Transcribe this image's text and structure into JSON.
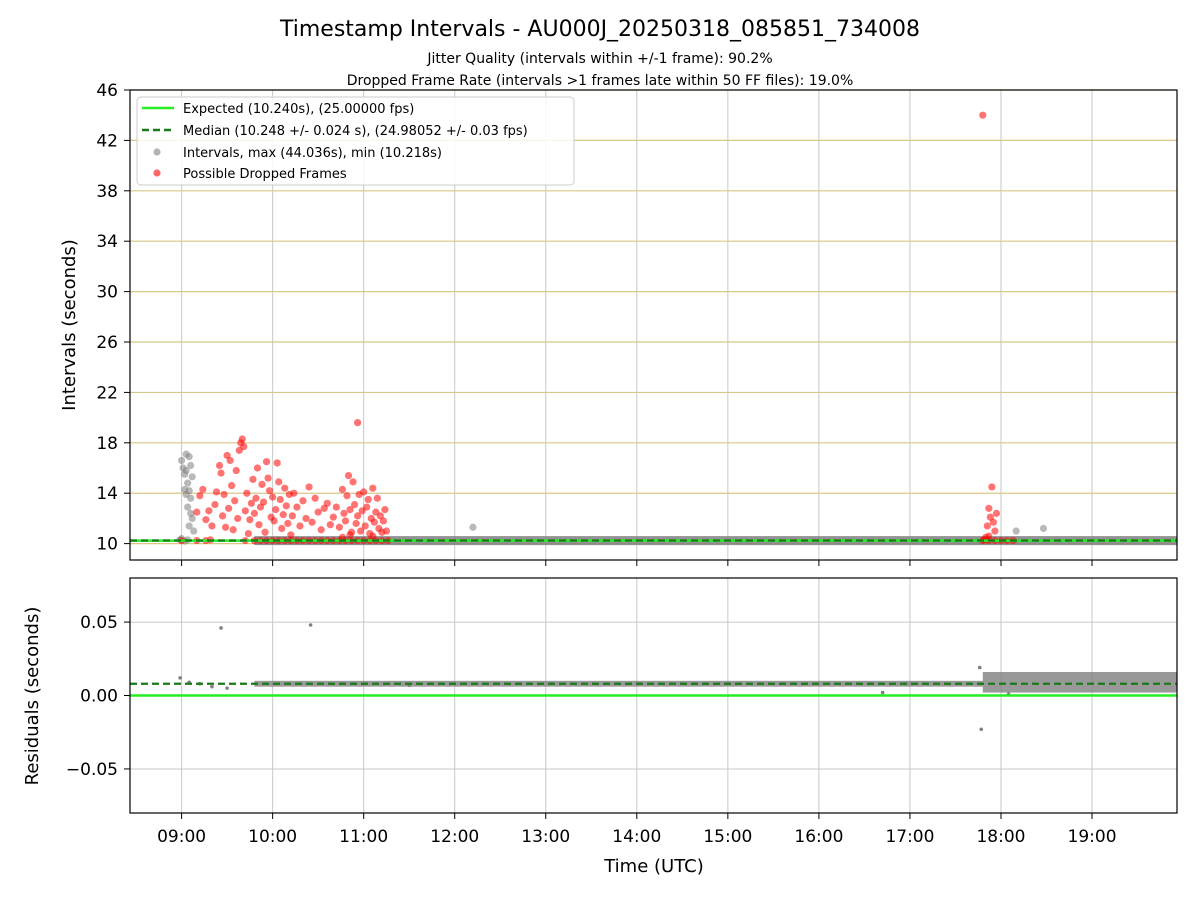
{
  "chart_data": [
    {
      "type": "scatter",
      "title": "Timestamp Intervals - AU000J_20250318_085851_734008",
      "subtitle": [
        "Jitter Quality (intervals within +/-1 frame): 90.2%",
        "Dropped Frame Rate (intervals >1 frames late within 50 FF files): 19.0%"
      ],
      "xlabel": "",
      "ylabel": "Intervals (seconds)",
      "ylim": [
        8.7,
        46
      ],
      "yticks": [
        "10",
        "14",
        "18",
        "22",
        "26",
        "30",
        "34",
        "38",
        "42",
        "46"
      ],
      "xlim": [
        "08:26",
        "19:56"
      ],
      "xticks": [
        "09:00",
        "10:00",
        "11:00",
        "12:00",
        "13:00",
        "14:00",
        "15:00",
        "16:00",
        "17:00",
        "18:00",
        "19:00"
      ],
      "grid": "x gray, y gold",
      "legend_position": "top-left",
      "legend": [
        "Expected (10.240s), (25.00000 fps)",
        "Median (10.248 +/- 0.024 s), (24.98052 +/- 0.03 fps)",
        "Intervals, max (44.036s), min (10.218s)",
        "Possible Dropped Frames"
      ],
      "colors": {
        "expected": "#22ee22",
        "median": "#1a7a1a",
        "intervals": "#808080",
        "dropped": "#ff0000",
        "ygrid": "#d8c888",
        "xgrid": "#c8c8c8"
      },
      "expected_line": 10.24,
      "median_line": 10.248,
      "baseline_band": {
        "x_from": "09:48",
        "x_to": "19:56",
        "y": 10.24
      },
      "series": [
        {
          "name": "Intervals, max (44.036s), min (10.218s)",
          "points": [
            [
              "08:59",
              10.3
            ],
            [
              "09:00",
              16.6
            ],
            [
              "09:01",
              16.0
            ],
            [
              "09:02",
              15.5
            ],
            [
              "09:03",
              15.8
            ],
            [
              "09:03",
              17.1
            ],
            [
              "09:04",
              14.8
            ],
            [
              "09:05",
              16.9
            ],
            [
              "09:02",
              14.3
            ],
            [
              "09:03",
              13.9
            ],
            [
              "09:05",
              14.2
            ],
            [
              "09:06",
              13.6
            ],
            [
              "09:04",
              12.9
            ],
            [
              "09:06",
              12.4
            ],
            [
              "09:07",
              12.0
            ],
            [
              "09:05",
              11.4
            ],
            [
              "09:08",
              11.0
            ],
            [
              "09:07",
              15.3
            ],
            [
              "09:06",
              16.2
            ],
            [
              "09:00",
              10.4
            ],
            [
              "09:02",
              10.2
            ],
            [
              "09:04",
              10.3
            ],
            [
              "12:12",
              11.3
            ],
            [
              "18:10",
              11.0
            ],
            [
              "18:28",
              11.2
            ]
          ]
        },
        {
          "name": "Possible Dropped Frames",
          "points": [
            [
              "09:10",
              12.5
            ],
            [
              "09:12",
              13.8
            ],
            [
              "09:14",
              14.3
            ],
            [
              "09:16",
              11.9
            ],
            [
              "09:18",
              12.6
            ],
            [
              "09:19",
              10.3
            ],
            [
              "09:20",
              11.4
            ],
            [
              "09:22",
              13.1
            ],
            [
              "09:23",
              14.1
            ],
            [
              "09:25",
              16.2
            ],
            [
              "09:26",
              15.6
            ],
            [
              "09:27",
              12.2
            ],
            [
              "09:28",
              13.9
            ],
            [
              "09:29",
              11.3
            ],
            [
              "09:30",
              17.0
            ],
            [
              "09:31",
              12.8
            ],
            [
              "09:32",
              16.6
            ],
            [
              "09:33",
              14.6
            ],
            [
              "09:34",
              11.1
            ],
            [
              "09:35",
              13.4
            ],
            [
              "09:36",
              15.8
            ],
            [
              "09:37",
              12.0
            ],
            [
              "09:38",
              17.4
            ],
            [
              "09:39",
              18.0
            ],
            [
              "09:40",
              18.3
            ],
            [
              "09:41",
              17.7
            ],
            [
              "09:42",
              12.6
            ],
            [
              "09:43",
              14.0
            ],
            [
              "09:44",
              10.8
            ],
            [
              "09:45",
              11.9
            ],
            [
              "09:46",
              13.2
            ],
            [
              "09:47",
              15.1
            ],
            [
              "09:48",
              12.4
            ],
            [
              "09:49",
              13.6
            ],
            [
              "09:50",
              16.0
            ],
            [
              "09:51",
              11.5
            ],
            [
              "09:52",
              12.9
            ],
            [
              "09:53",
              14.7
            ],
            [
              "09:54",
              13.3
            ],
            [
              "09:55",
              10.9
            ],
            [
              "09:56",
              16.5
            ],
            [
              "09:57",
              15.2
            ],
            [
              "09:58",
              14.2
            ],
            [
              "09:59",
              12.1
            ],
            [
              "10:00",
              13.7
            ],
            [
              "10:01",
              11.8
            ],
            [
              "10:02",
              12.7
            ],
            [
              "10:03",
              16.4
            ],
            [
              "10:04",
              14.9
            ],
            [
              "10:05",
              13.5
            ],
            [
              "10:06",
              11.2
            ],
            [
              "10:07",
              12.3
            ],
            [
              "10:08",
              14.4
            ],
            [
              "10:09",
              13.0
            ],
            [
              "10:10",
              11.6
            ],
            [
              "10:11",
              13.9
            ],
            [
              "10:12",
              10.7
            ],
            [
              "10:13",
              12.2
            ],
            [
              "10:14",
              14.0
            ],
            [
              "10:16",
              12.9
            ],
            [
              "10:18",
              11.4
            ],
            [
              "10:20",
              13.4
            ],
            [
              "10:22",
              12.0
            ],
            [
              "10:24",
              14.5
            ],
            [
              "10:26",
              11.7
            ],
            [
              "10:28",
              13.6
            ],
            [
              "10:30",
              12.5
            ],
            [
              "10:32",
              11.1
            ],
            [
              "10:34",
              12.8
            ],
            [
              "10:36",
              13.2
            ],
            [
              "10:38",
              11.5
            ],
            [
              "10:40",
              12.1
            ],
            [
              "10:42",
              12.9
            ],
            [
              "10:44",
              11.3
            ],
            [
              "10:46",
              14.3
            ],
            [
              "10:47",
              12.4
            ],
            [
              "10:48",
              11.8
            ],
            [
              "10:49",
              13.8
            ],
            [
              "10:50",
              15.4
            ],
            [
              "10:51",
              12.7
            ],
            [
              "10:52",
              10.9
            ],
            [
              "10:53",
              14.9
            ],
            [
              "10:54",
              13.1
            ],
            [
              "10:55",
              11.6
            ],
            [
              "10:56",
              12.2
            ],
            [
              "10:57",
              13.9
            ],
            [
              "10:58",
              11.0
            ],
            [
              "10:59",
              12.6
            ],
            [
              "11:00",
              14.1
            ],
            [
              "11:01",
              11.4
            ],
            [
              "11:02",
              12.9
            ],
            [
              "11:03",
              13.5
            ],
            [
              "11:04",
              10.8
            ],
            [
              "11:05",
              12.0
            ],
            [
              "11:06",
              14.4
            ],
            [
              "11:07",
              11.7
            ],
            [
              "11:08",
              12.5
            ],
            [
              "11:09",
              13.6
            ],
            [
              "11:10",
              11.2
            ],
            [
              "11:11",
              12.2
            ],
            [
              "11:12",
              10.9
            ],
            [
              "11:13",
              11.8
            ],
            [
              "11:14",
              12.7
            ],
            [
              "11:15",
              11.0
            ],
            [
              "10:56",
              19.6
            ],
            [
              "10:46",
              10.5
            ],
            [
              "10:51",
              10.7
            ],
            [
              "11:06",
              10.6
            ],
            [
              "17:50",
              10.5
            ],
            [
              "17:51",
              11.4
            ],
            [
              "17:52",
              12.8
            ],
            [
              "17:53",
              12.1
            ],
            [
              "17:54",
              14.5
            ],
            [
              "17:55",
              11.7
            ],
            [
              "17:56",
              11.0
            ],
            [
              "17:57",
              12.4
            ],
            [
              "17:49",
              10.3
            ],
            [
              "17:52",
              10.6
            ],
            [
              "17:48",
              44.0
            ],
            [
              "09:00",
              10.24
            ],
            [
              "09:10",
              10.24
            ],
            [
              "09:16",
              10.24
            ],
            [
              "09:42",
              10.24
            ],
            [
              "09:48",
              10.24
            ],
            [
              "09:52",
              10.24
            ],
            [
              "09:56",
              10.24
            ],
            [
              "10:00",
              10.24
            ],
            [
              "10:04",
              10.24
            ],
            [
              "10:08",
              10.24
            ],
            [
              "10:12",
              10.24
            ],
            [
              "10:16",
              10.24
            ],
            [
              "10:20",
              10.24
            ],
            [
              "10:24",
              10.24
            ],
            [
              "10:28",
              10.24
            ],
            [
              "10:32",
              10.24
            ],
            [
              "10:36",
              10.24
            ],
            [
              "10:40",
              10.24
            ],
            [
              "10:44",
              10.24
            ],
            [
              "10:48",
              10.24
            ],
            [
              "10:52",
              10.24
            ],
            [
              "10:56",
              10.24
            ],
            [
              "11:00",
              10.24
            ],
            [
              "11:04",
              10.24
            ],
            [
              "11:08",
              10.24
            ],
            [
              "11:12",
              10.24
            ],
            [
              "11:16",
              10.24
            ],
            [
              "17:48",
              10.24
            ],
            [
              "17:52",
              10.24
            ],
            [
              "17:56",
              10.24
            ],
            [
              "18:00",
              10.24
            ],
            [
              "18:04",
              10.24
            ],
            [
              "18:08",
              10.24
            ]
          ]
        }
      ]
    },
    {
      "type": "scatter",
      "title": "",
      "xlabel": "Time (UTC)",
      "ylabel": "Residuals (seconds)",
      "ylim": [
        -0.08,
        0.08
      ],
      "yticks": [
        "−0.05",
        "0.00",
        "0.05"
      ],
      "ytick_values": [
        -0.05,
        0.0,
        0.05
      ],
      "xlim": [
        "08:26",
        "19:56"
      ],
      "xticks": [
        "09:00",
        "10:00",
        "11:00",
        "12:00",
        "13:00",
        "14:00",
        "15:00",
        "16:00",
        "17:00",
        "18:00",
        "19:00"
      ],
      "grid": "on",
      "expected_line": 0.0,
      "median_line": 0.008,
      "bands": [
        {
          "x_from": "09:48",
          "x_to": "17:48",
          "y_low": 0.006,
          "y_high": 0.01
        },
        {
          "x_from": "17:48",
          "x_to": "19:56",
          "y_low": 0.002,
          "y_high": 0.016
        }
      ],
      "series": [
        {
          "name": "residuals",
          "points": [
            [
              "08:59",
              0.012
            ],
            [
              "09:05",
              0.009
            ],
            [
              "09:12",
              0.008
            ],
            [
              "09:20",
              0.006
            ],
            [
              "09:26",
              0.046
            ],
            [
              "09:30",
              0.005
            ],
            [
              "10:25",
              0.048
            ],
            [
              "11:30",
              0.007
            ],
            [
              "16:42",
              0.002
            ],
            [
              "17:46",
              0.019
            ],
            [
              "17:47",
              -0.023
            ],
            [
              "18:05",
              0.001
            ]
          ]
        }
      ]
    }
  ]
}
